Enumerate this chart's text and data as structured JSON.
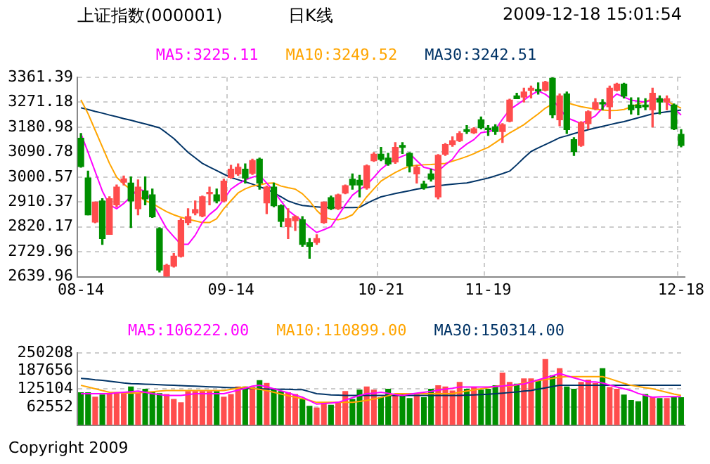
{
  "chart_data": [
    {
      "type": "candlestick",
      "title": "上证指数(000001)",
      "subtitle": "日K线",
      "annotations": [
        "2009-12-18 15:01:54"
      ],
      "categories": [
        "08-14",
        null,
        null,
        null,
        null,
        null,
        null,
        null,
        null,
        null,
        null,
        null,
        null,
        null,
        null,
        null,
        null,
        null,
        null,
        null,
        null,
        "09-14",
        null,
        null,
        null,
        null,
        null,
        null,
        null,
        null,
        null,
        null,
        null,
        null,
        null,
        null,
        null,
        null,
        null,
        null,
        null,
        null,
        "10-21",
        null,
        null,
        null,
        null,
        null,
        null,
        null,
        null,
        null,
        null,
        null,
        null,
        null,
        null,
        "11-19",
        null,
        null,
        null,
        null,
        null,
        null,
        null,
        null,
        null,
        null,
        null,
        null,
        null,
        null,
        null,
        null,
        null,
        null,
        null,
        null,
        null,
        null,
        null,
        null,
        null,
        null,
        "12-18"
      ],
      "ohlc": [
        [
          3141,
          3158,
          3036,
          3039
        ],
        [
          2997,
          3022,
          2864,
          2864
        ],
        [
          2838,
          2910,
          2835,
          2910
        ],
        [
          2914,
          2922,
          2757,
          2778
        ],
        [
          2793,
          2929,
          2793,
          2922
        ],
        [
          2900,
          2972,
          2893,
          2964
        ],
        [
          2982,
          3004,
          2972,
          2994
        ],
        [
          2979,
          3001,
          2818,
          2914
        ],
        [
          2886,
          2990,
          2864,
          2964
        ],
        [
          2950,
          3001,
          2900,
          2922
        ],
        [
          2936,
          2957,
          2854,
          2857
        ],
        [
          2814,
          2817,
          2657,
          2664
        ],
        [
          2642,
          2685,
          2640,
          2681
        ],
        [
          2678,
          2724,
          2675,
          2714
        ],
        [
          2714,
          2850,
          2711,
          2843
        ],
        [
          2836,
          2886,
          2828,
          2857
        ],
        [
          2871,
          2914,
          2864,
          2883
        ],
        [
          2860,
          2932,
          2857,
          2929
        ],
        [
          2940,
          2964,
          2900,
          2943
        ],
        [
          2936,
          2957,
          2907,
          2914
        ],
        [
          2914,
          2993,
          2911,
          2986
        ],
        [
          2999,
          3043,
          2996,
          3029
        ],
        [
          3012,
          3048,
          3007,
          3036
        ],
        [
          3029,
          3048,
          2979,
          2997
        ],
        [
          3014,
          3065,
          3010,
          3060
        ],
        [
          3065,
          3069,
          2957,
          2979
        ],
        [
          2907,
          2968,
          2868,
          2964
        ],
        [
          2964,
          2979,
          2893,
          2897
        ],
        [
          2897,
          2900,
          2821,
          2840
        ],
        [
          2821,
          2886,
          2778,
          2850
        ],
        [
          2843,
          2860,
          2807,
          2857
        ],
        [
          2846,
          2857,
          2750,
          2757
        ],
        [
          2764,
          2778,
          2707,
          2750
        ],
        [
          2764,
          2792,
          2757,
          2778
        ],
        [
          2836,
          2910,
          2833,
          2910
        ],
        [
          2926,
          2932,
          2883,
          2886
        ],
        [
          2886,
          2939,
          2883,
          2936
        ],
        [
          2943,
          2972,
          2940,
          2969
        ],
        [
          2993,
          3012,
          2957,
          2972
        ],
        [
          2989,
          3007,
          2929,
          2972
        ],
        [
          2961,
          3044,
          2957,
          3041
        ],
        [
          3060,
          3089,
          3057,
          3083
        ],
        [
          3083,
          3108,
          3060,
          3065
        ],
        [
          3069,
          3086,
          3043,
          3048
        ],
        [
          3055,
          3125,
          3050,
          3108
        ],
        [
          3115,
          3125,
          3086,
          3108
        ],
        [
          3086,
          3089,
          3019,
          3041
        ],
        [
          3012,
          3043,
          2979,
          3036
        ],
        [
          2975,
          2986,
          2957,
          2961
        ],
        [
          3012,
          3029,
          2986,
          2993
        ],
        [
          2929,
          3082,
          2922,
          3079
        ],
        [
          3083,
          3122,
          3079,
          3118
        ],
        [
          3118,
          3146,
          3112,
          3132
        ],
        [
          3132,
          3165,
          3129,
          3158
        ],
        [
          3172,
          3187,
          3158,
          3165
        ],
        [
          3161,
          3179,
          3158,
          3175
        ],
        [
          3208,
          3218,
          3175,
          3179
        ],
        [
          3175,
          3187,
          3151,
          3172
        ],
        [
          3182,
          3190,
          3155,
          3165
        ],
        [
          3165,
          3194,
          3126,
          3190
        ],
        [
          3203,
          3282,
          3200,
          3279
        ],
        [
          3294,
          3304,
          3284,
          3284
        ],
        [
          3290,
          3322,
          3272,
          3308
        ],
        [
          3315,
          3330,
          3287,
          3322
        ],
        [
          3315,
          3341,
          3301,
          3312
        ],
        [
          3315,
          3347,
          3312,
          3344
        ],
        [
          3358,
          3361,
          3215,
          3226
        ],
        [
          3208,
          3301,
          3186,
          3294
        ],
        [
          3301,
          3308,
          3158,
          3172
        ],
        [
          3136,
          3143,
          3079,
          3093
        ],
        [
          3115,
          3201,
          3112,
          3198
        ],
        [
          3194,
          3240,
          3175,
          3237
        ],
        [
          3248,
          3284,
          3244,
          3270
        ],
        [
          3270,
          3280,
          3245,
          3265
        ],
        [
          3255,
          3330,
          3213,
          3322
        ],
        [
          3315,
          3340,
          3312,
          3337
        ],
        [
          3337,
          3340,
          3287,
          3294
        ],
        [
          3261,
          3287,
          3229,
          3244
        ],
        [
          3261,
          3287,
          3226,
          3251
        ],
        [
          3261,
          3284,
          3244,
          3255
        ],
        [
          3244,
          3322,
          3182,
          3304
        ],
        [
          3284,
          3294,
          3229,
          3272
        ],
        [
          3272,
          3294,
          3244,
          3284
        ],
        [
          3261,
          3265,
          3172,
          3175
        ],
        [
          3155,
          3172,
          3110,
          3115
        ]
      ],
      "series": [
        {
          "type": "line",
          "name": "MA5:3225.11",
          "color": "#ff00ff",
          "values": [
            3158,
            3090,
            3020,
            2950,
            2900,
            2886,
            2905,
            2930,
            2957,
            2950,
            2907,
            2860,
            2814,
            2785,
            2757,
            2757,
            2790,
            2836,
            2865,
            2886,
            2920,
            2957,
            2975,
            2990,
            3000,
            3007,
            2979,
            2950,
            2914,
            2880,
            2860,
            2843,
            2820,
            2800,
            2810,
            2821,
            2860,
            2900,
            2935,
            2955,
            2972,
            3000,
            3029,
            3050,
            3065,
            3076,
            3086,
            3060,
            3036,
            3030,
            3022,
            3045,
            3065,
            3100,
            3120,
            3136,
            3161,
            3165,
            3172,
            3210,
            3244,
            3262,
            3279,
            3298,
            3312,
            3300,
            3280,
            3250,
            3215,
            3205,
            3194,
            3208,
            3222,
            3250,
            3279,
            3301,
            3290,
            3279,
            3275,
            3272,
            3280,
            3287,
            3270,
            3250,
            3225
          ]
        },
        {
          "type": "line",
          "name": "MA10:3249.52",
          "color": "#ffa500",
          "values": [
            3280,
            3230,
            3170,
            3110,
            3050,
            3000,
            2975,
            2955,
            2935,
            2915,
            2905,
            2890,
            2875,
            2864,
            2855,
            2848,
            2842,
            2836,
            2836,
            2850,
            2886,
            2915,
            2943,
            2958,
            2968,
            2972,
            2978,
            2979,
            2968,
            2962,
            2957,
            2940,
            2914,
            2880,
            2855,
            2848,
            2846,
            2852,
            2864,
            2895,
            2929,
            2958,
            2986,
            3002,
            3017,
            3030,
            3040,
            3043,
            3045,
            3046,
            3048,
            3050,
            3058,
            3066,
            3075,
            3085,
            3097,
            3108,
            3125,
            3143,
            3160,
            3175,
            3190,
            3210,
            3229,
            3250,
            3265,
            null,
            3270,
            3262,
            3255,
            3251,
            3246,
            3243,
            3241,
            3242,
            3245,
            3255,
            3265,
            3275,
            3282,
            3284,
            3275,
            3262,
            3250
          ]
        },
        {
          "type": "line",
          "name": "MA30:3242.51",
          "color": "#003366",
          "values": [
            3251,
            3245,
            3238,
            3232,
            3225,
            3219,
            3212,
            3206,
            3199,
            3193,
            3186,
            3179,
            3160,
            3140,
            3115,
            3090,
            3070,
            3050,
            3037,
            3024,
            3011,
            2999,
            2991,
            2983,
            2975,
            2965,
            2957,
            2943,
            2929,
            2914,
            2905,
            2898,
            2895,
            2893,
            2891,
            2890,
            2890,
            2890,
            2890,
            2891,
            2905,
            2918,
            2929,
            2935,
            2941,
            2946,
            2951,
            2957,
            2961,
            2965,
            2969,
            2972,
            2975,
            2977,
            2979,
            2985,
            2991,
            2997,
            3005,
            3013,
            3022,
            3045,
            3070,
            3093,
            3106,
            3118,
            3130,
            3143,
            3150,
            3158,
            3165,
            3172,
            3178,
            3184,
            3190,
            3196,
            3201,
            3208,
            3215,
            3222,
            3229,
            3233,
            3237,
            3240,
            3243
          ]
        }
      ],
      "ylim": [
        2639.96,
        3361.39
      ],
      "yticks": [
        2639.96,
        2729.96,
        2820.17,
        2910.37,
        3000.57,
        3090.78,
        3180.98,
        3271.18,
        3361.39
      ],
      "grid": true,
      "legend": "top",
      "marker": "none"
    },
    {
      "type": "bar",
      "annotations": [
        "Copyright 2009"
      ],
      "categories": [
        null,
        null,
        null,
        null,
        null,
        null,
        null,
        null,
        null,
        null,
        null,
        null,
        null,
        null,
        null,
        null,
        null,
        null,
        null,
        null,
        null,
        null,
        null,
        null,
        null,
        null,
        null,
        null,
        null,
        null,
        null,
        null,
        null,
        null,
        null,
        null,
        null,
        null,
        null,
        null,
        null,
        null,
        null,
        null,
        null,
        null,
        null,
        null,
        null,
        null,
        null,
        null,
        null,
        null,
        null,
        null,
        null,
        null,
        null,
        null,
        null,
        null,
        null,
        null,
        null,
        null,
        null,
        null,
        null,
        null,
        null,
        null,
        null,
        null,
        null,
        null,
        null,
        null,
        null,
        null,
        null,
        null,
        null,
        null,
        null
      ],
      "series": [
        {
          "type": "bar",
          "colors": [
            "#008f00",
            "#008f00",
            "#ff4d4d",
            "#008f00",
            "#ff4d4d",
            "#ff4d4d",
            "#ff4d4d",
            "#008f00",
            "#ff4d4d",
            "#008f00",
            "#008f00",
            "#008f00",
            "#ff4d4d",
            "#ff4d4d",
            "#ff4d4d",
            "#ff4d4d",
            "#ff4d4d",
            "#ff4d4d",
            "#ff4d4d",
            "#008f00",
            "#ff4d4d",
            "#ff4d4d",
            "#ff4d4d",
            "#008f00",
            "#ff4d4d",
            "#008f00",
            "#ff4d4d",
            "#008f00",
            "#008f00",
            "#ff4d4d",
            "#ff4d4d",
            "#008f00",
            "#008f00",
            "#ff4d4d",
            "#ff4d4d",
            "#008f00",
            "#ff4d4d",
            "#ff4d4d",
            "#008f00",
            "#008f00",
            "#ff4d4d",
            "#ff4d4d",
            "#008f00",
            "#008f00",
            "#ff4d4d",
            "#008f00",
            "#008f00",
            "#ff4d4d",
            "#008f00",
            "#008f00",
            "#ff4d4d",
            "#ff4d4d",
            "#ff4d4d",
            "#ff4d4d",
            "#008f00",
            "#ff4d4d",
            "#008f00",
            "#008f00",
            "#008f00",
            "#ff4d4d",
            "#ff4d4d",
            "#008f00",
            "#ff4d4d",
            "#ff4d4d",
            "#008f00",
            "#ff4d4d",
            "#008f00",
            "#ff4d4d",
            "#008f00",
            "#008f00",
            "#ff4d4d",
            "#ff4d4d",
            "#ff4d4d",
            "#008f00",
            "#ff4d4d",
            "#ff4d4d",
            "#008f00",
            "#008f00",
            "#008f00",
            "#008f00",
            "#ff4d4d",
            "#008f00",
            "#ff4d4d",
            "#008f00",
            "#008f00"
          ],
          "values": [
            114000,
            114000,
            99000,
            106000,
            111000,
            114000,
            111000,
            134000,
            114000,
            126000,
            114000,
            111000,
            108000,
            91000,
            79000,
            118000,
            118000,
            118000,
            118000,
            118000,
            99000,
            108000,
            134000,
            134000,
            132000,
            156000,
            146000,
            126000,
            118000,
            114000,
            108000,
            91000,
            67000,
            61000,
            79000,
            71000,
            79000,
            118000,
            91000,
            123000,
            134000,
            123000,
            97000,
            126000,
            108000,
            108000,
            94000,
            106000,
            97000,
            126000,
            138000,
            134000,
            120000,
            150000,
            126000,
            132000,
            123000,
            126000,
            138000,
            182000,
            150000,
            144000,
            162000,
            162000,
            158000,
            229000,
            173000,
            197000,
            134000,
            126000,
            150000,
            158000,
            146000,
            197000,
            132000,
            126000,
            106000,
            87000,
            83000,
            108000,
            97000,
            94000,
            94000,
            97000,
            97000
          ]
        },
        {
          "type": "line",
          "name": "MA5:106222.00",
          "color": "#ff00ff",
          "values": [
            109000,
            109000,
            109000,
            109000,
            109000,
            112000,
            114000,
            116000,
            118000,
            114000,
            109000,
            106000,
            103000,
            103000,
            103000,
            106000,
            109000,
            109000,
            109000,
            109000,
            109000,
            115000,
            121000,
            128000,
            135000,
            138000,
            133000,
            126000,
            119000,
            112000,
            104000,
            97000,
            85000,
            73000,
            75000,
            77000,
            79000,
            87000,
            95000,
            103000,
            109000,
            111000,
            114000,
            110000,
            106000,
            103000,
            107000,
            111000,
            114000,
            117000,
            121000,
            125000,
            128000,
            132000,
            132000,
            132000,
            132000,
            132000,
            134000,
            136000,
            138000,
            140000,
            143000,
            150000,
            157000,
            164000,
            171000,
            179000,
            171000,
            164000,
            157000,
            150000,
            150000,
            146000,
            139000,
            132000,
            126000,
            120000,
            110000,
            103000,
            97000,
            98000,
            99000,
            99000,
            99000
          ]
        },
        {
          "type": "line",
          "name": "MA10:110899.00",
          "color": "#ffa500",
          "values": [
            138000,
            132000,
            126000,
            120000,
            114000,
            113000,
            112000,
            111000,
            112000,
            114000,
            116000,
            118000,
            120000,
            120000,
            120000,
            120000,
            120000,
            120000,
            120000,
            120000,
            120000,
            124000,
            128000,
            132000,
            128000,
            124000,
            120000,
            114000,
            108000,
            102000,
            97000,
            92000,
            86000,
            79000,
            79000,
            79000,
            79000,
            79000,
            79000,
            82000,
            86000,
            91000,
            96000,
            102000,
            109000,
            109000,
            109000,
            109000,
            109000,
            109000,
            109000,
            109000,
            109000,
            114000,
            118000,
            122000,
            126000,
            130000,
            134000,
            138000,
            134000,
            140000,
            146000,
            150000,
            154000,
            158000,
            162000,
            166000,
            168000,
            168000,
            168000,
            168000,
            168000,
            168000,
            161000,
            153000,
            145000,
            138000,
            134000,
            130000,
            126000,
            120000,
            114000,
            108000,
            103000
          ]
        },
        {
          "type": "line",
          "name": "MA30:150314.00",
          "color": "#003366",
          "values": [
            162000,
            160000,
            157000,
            155000,
            152000,
            149000,
            146000,
            144000,
            143000,
            142000,
            141000,
            140000,
            139000,
            138000,
            137000,
            136000,
            135000,
            134000,
            133000,
            132000,
            131000,
            130000,
            129000,
            128000,
            127000,
            126000,
            125000,
            125000,
            124000,
            124000,
            123000,
            123000,
            116000,
            109000,
            107000,
            105000,
            104000,
            103000,
            103000,
            103000,
            103000,
            103000,
            103000,
            103000,
            103000,
            103000,
            103000,
            103000,
            103000,
            103000,
            103000,
            103000,
            103000,
            103000,
            104000,
            105000,
            106000,
            107000,
            109000,
            111000,
            113000,
            115000,
            118000,
            120000,
            125000,
            129000,
            134000,
            138000,
            138000,
            138000,
            138000,
            138000,
            138000,
            138000,
            138000,
            138000,
            138000,
            138000,
            138000,
            138000,
            138000,
            138000,
            138000,
            138000,
            138000
          ]
        }
      ],
      "ylim": [
        0,
        250208
      ],
      "yticks": [
        62552,
        125104,
        187656,
        250208
      ],
      "grid": "y",
      "legend": "top",
      "tick_labels": "y",
      "marker": "none"
    }
  ]
}
